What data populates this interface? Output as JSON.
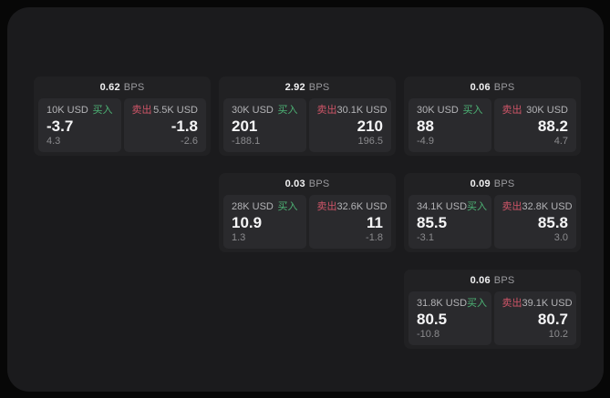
{
  "labels": {
    "buy": "买入",
    "sell": "卖出",
    "bps_unit": "BPS"
  },
  "colors": {
    "outer_background": "#070707",
    "window_background": "#1b1b1d",
    "card_background": "#212123",
    "tile_background": "#2a2a2d",
    "buy_accent": "#4db375",
    "sell_accent": "#cf5568",
    "value_text": "#f5f5f6",
    "muted_text": "#8b8b8e"
  },
  "cards": [
    {
      "bps": "0.62",
      "buy": {
        "amount": "10K USD",
        "value": "-3.7",
        "delta": "4.3"
      },
      "sell": {
        "amount": "5.5K USD",
        "value": "-1.8",
        "delta": "-2.6"
      }
    },
    {
      "bps": "2.92",
      "buy": {
        "amount": "30K USD",
        "value": "201",
        "delta": "-188.1"
      },
      "sell": {
        "amount": "30.1K USD",
        "value": "210",
        "delta": "196.5"
      }
    },
    {
      "bps": "0.06",
      "buy": {
        "amount": "30K USD",
        "value": "88",
        "delta": "-4.9"
      },
      "sell": {
        "amount": "30K USD",
        "value": "88.2",
        "delta": "4.7"
      }
    },
    {
      "bps": "0.03",
      "buy": {
        "amount": "28K USD",
        "value": "10.9",
        "delta": "1.3"
      },
      "sell": {
        "amount": "32.6K USD",
        "value": "11",
        "delta": "-1.8"
      }
    },
    {
      "bps": "0.09",
      "buy": {
        "amount": "34.1K USD",
        "value": "85.5",
        "delta": "-3.1"
      },
      "sell": {
        "amount": "32.8K USD",
        "value": "85.8",
        "delta": "3.0"
      }
    },
    {
      "bps": "0.06",
      "buy": {
        "amount": "31.8K USD",
        "value": "80.5",
        "delta": "-10.8"
      },
      "sell": {
        "amount": "39.1K USD",
        "value": "80.7",
        "delta": "10.2"
      }
    }
  ]
}
